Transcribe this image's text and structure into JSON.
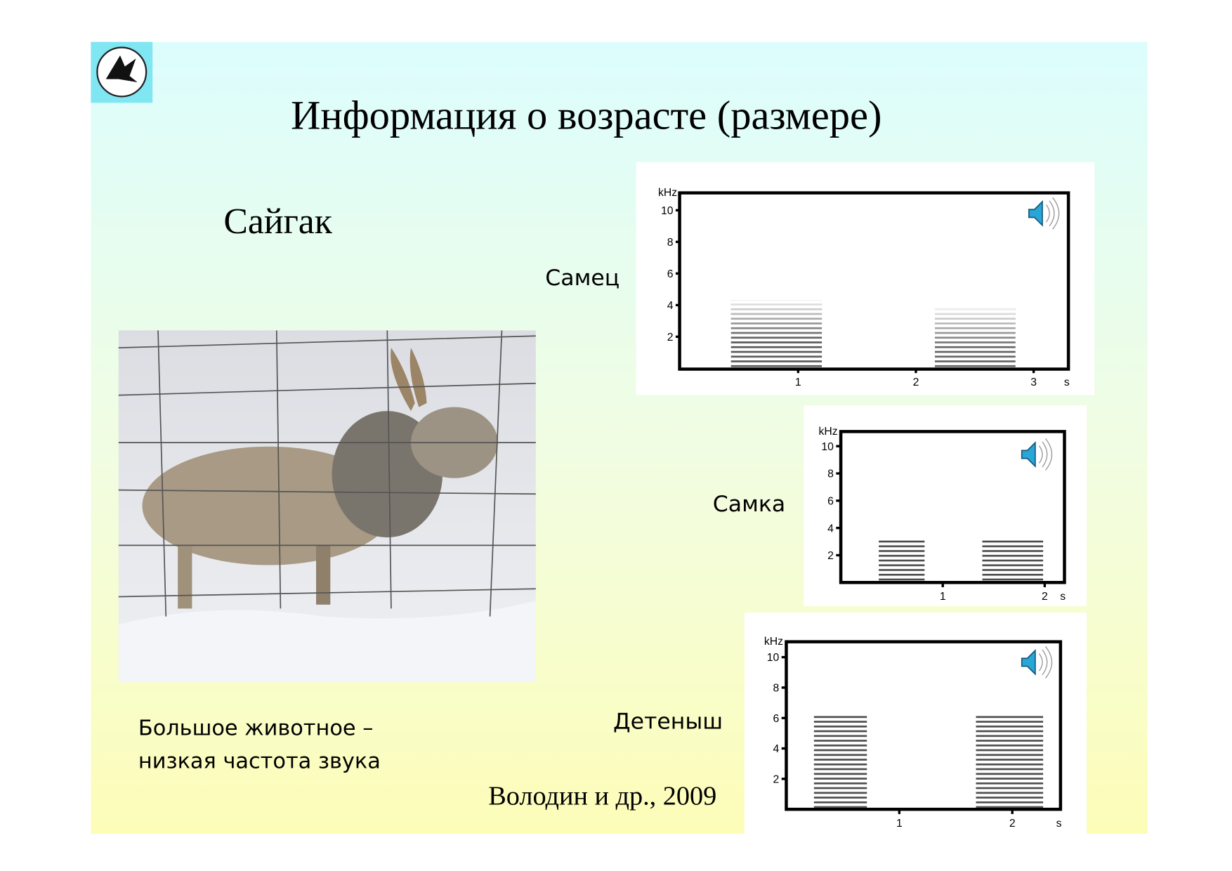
{
  "title": "Информация о возрасте (размере)",
  "species": "Сайгак",
  "caption": [
    "Большое животное –",
    "низкая частота звука"
  ],
  "citation": "Володин и др., 2009",
  "spectrograms": [
    {
      "label": "Самец",
      "y_unit": "kHz",
      "x_unit": "s",
      "yticks": [
        2,
        4,
        6,
        8,
        10
      ],
      "xticks": [
        1,
        2,
        3
      ]
    },
    {
      "label": "Самка",
      "y_unit": "kHz",
      "x_unit": "s",
      "yticks": [
        2,
        4,
        6,
        8,
        10
      ],
      "xticks": [
        1,
        2
      ]
    },
    {
      "label": "Детеныш",
      "y_unit": "kHz",
      "x_unit": "s",
      "yticks": [
        2,
        4,
        6,
        8,
        10
      ],
      "xticks": [
        1,
        2
      ]
    }
  ]
}
